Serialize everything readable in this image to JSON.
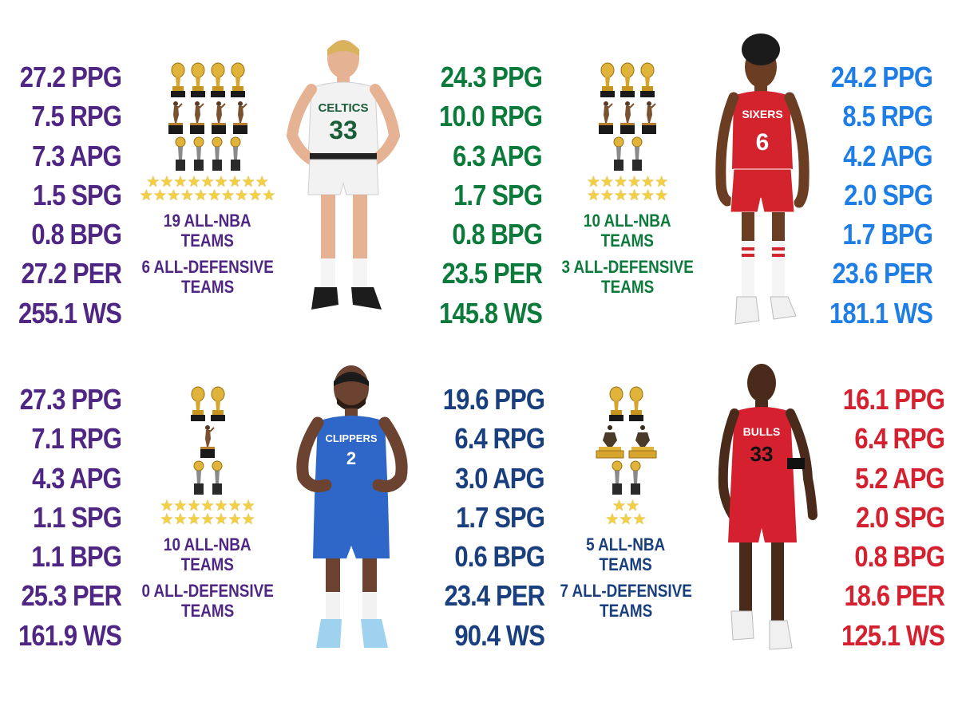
{
  "colors": {
    "purple": "#4f2683",
    "green": "#0b7a3b",
    "blue": "#1f7ee6",
    "navy": "#1a3f7f",
    "red": "#d4202f"
  },
  "icons": [
    "championship-trophy-icon",
    "mvp-trophy-icon",
    "dpoy-trophy-icon",
    "finals-mvp-trophy-icon",
    "all-star-icon"
  ],
  "panels": [
    {
      "color": "#4f2683",
      "stats": [
        "27.2 PPG",
        "7.5 RPG",
        "7.3 APG",
        "1.5 SPG",
        "0.8 BPG",
        "27.2 PER",
        "255.1 WS"
      ],
      "awards": {
        "titles": 4,
        "mvps": 4,
        "dpoy": 0,
        "finals_mvps": 4,
        "all_star_rows": [
          9,
          10
        ],
        "all_nba": "19 ALL-NBA TEAMS",
        "all_defensive": "6 ALL-DEFENSIVE TEAMS"
      }
    },
    {
      "color": "#0b7a3b",
      "jersey_team": "CELTICS",
      "jersey_number": "33",
      "stats": [
        "24.3 PPG",
        "10.0 RPG",
        "6.3 APG",
        "1.7 SPG",
        "0.8 BPG",
        "23.5 PER",
        "145.8 WS"
      ],
      "awards": {
        "titles": 3,
        "mvps": 3,
        "dpoy": 0,
        "finals_mvps": 2,
        "all_star_rows": [
          6,
          6
        ],
        "all_nba": "10 ALL-NBA TEAMS",
        "all_defensive": "3 ALL-DEFENSIVE TEAMS"
      }
    },
    {
      "color": "#1f7ee6",
      "jersey_team": "SIXERS",
      "jersey_number": "6",
      "stats": [
        "24.2 PPG",
        "8.5 RPG",
        "4.2 APG",
        "2.0 SPG",
        "1.7 BPG",
        "23.6 PER",
        "181.1 WS"
      ]
    },
    {
      "color": "#4f2683",
      "stats": [
        "27.3 PPG",
        "7.1 RPG",
        "4.3 APG",
        "1.1 SPG",
        "1.1 BPG",
        "25.3 PER",
        "161.9 WS"
      ],
      "awards": {
        "titles": 2,
        "mvps": 1,
        "dpoy": 0,
        "finals_mvps": 2,
        "all_star_rows": [
          7,
          7
        ],
        "all_nba": "10 ALL-NBA TEAMS",
        "all_defensive": "0 ALL-DEFENSIVE TEAMS"
      }
    },
    {
      "color": "#1a3f7f",
      "jersey_team": "CLIPPERS",
      "jersey_number": "2",
      "stats": [
        "19.6 PPG",
        "6.4 RPG",
        "3.0 APG",
        "1.7 SPG",
        "0.6 BPG",
        "23.4 PER",
        "90.4 WS"
      ],
      "awards": {
        "titles": 2,
        "mvps": 0,
        "dpoy": 2,
        "finals_mvps": 2,
        "all_star_rows": [
          2,
          3
        ],
        "all_nba": "5 ALL-NBA TEAMS",
        "all_defensive": "7 ALL-DEFENSIVE TEAMS"
      }
    },
    {
      "color": "#d4202f",
      "jersey_team": "BULLS",
      "jersey_number": "33",
      "stats": [
        "16.1 PPG",
        "6.4 RPG",
        "5.2 APG",
        "2.0 SPG",
        "0.8 BPG",
        "18.6 PER",
        "125.1 WS"
      ]
    }
  ]
}
